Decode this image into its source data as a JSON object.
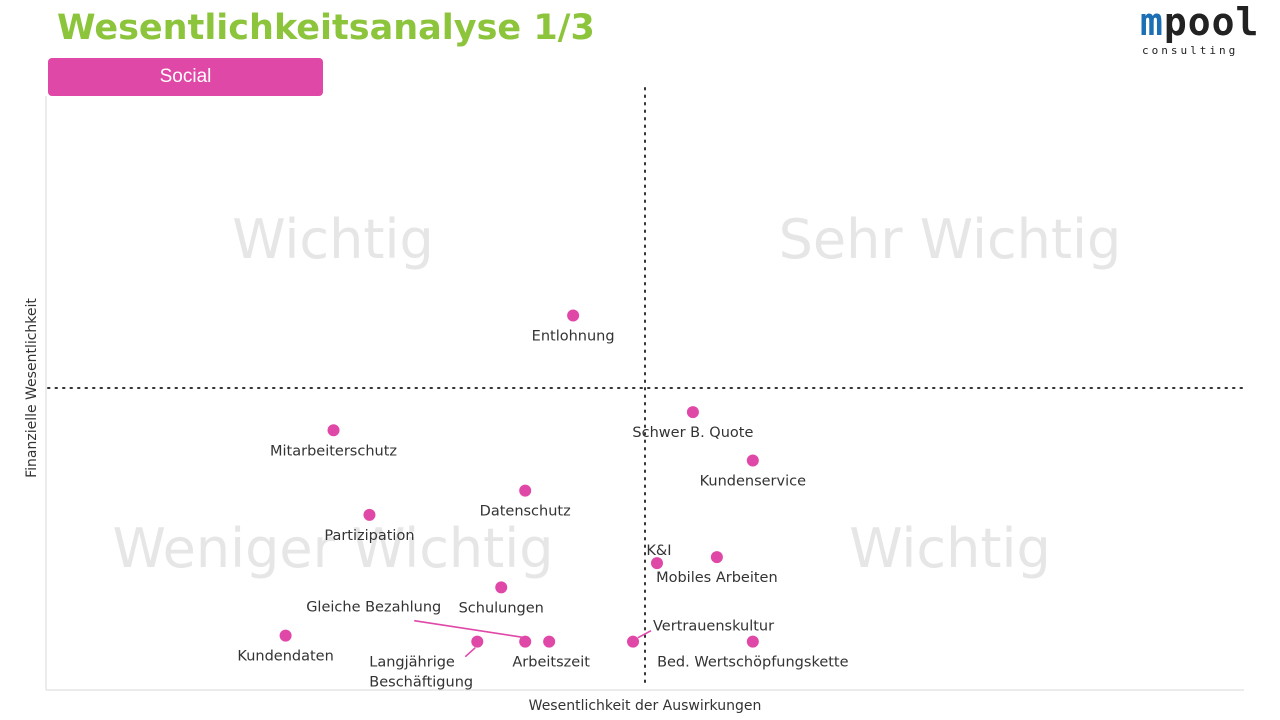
{
  "title": "Wesentlichkeitsanalyse 1/3",
  "category": "Social",
  "logo": {
    "main_first": "m",
    "main_rest": "pool",
    "sub": "consulting"
  },
  "colors": {
    "title": "#8cc43c",
    "accent": "#e048a8",
    "m_letter": "#1c6fb5"
  },
  "chart_data": {
    "type": "scatter",
    "title": "",
    "xlabel": "Wesentlichkeit der Auswirkungen",
    "ylabel": "Finanzielle Wesentlichkeit",
    "xlim": [
      0,
      100
    ],
    "ylim": [
      0,
      100
    ],
    "threshold": {
      "x": 50,
      "y": 50
    },
    "quadrant_labels": {
      "top_left": "Wichtig",
      "top_right": "Sehr Wichtig",
      "bottom_left": "Weniger Wichtig",
      "bottom_right": "Wichtig"
    },
    "points": [
      {
        "label": "Entlohnung",
        "x": 44,
        "y": 62
      },
      {
        "label": "Mitarbeiterschutz",
        "x": 24,
        "y": 43
      },
      {
        "label": "Schwer B. Quote",
        "x": 54,
        "y": 46
      },
      {
        "label": "Kundenservice",
        "x": 59,
        "y": 38
      },
      {
        "label": "Datenschutz",
        "x": 40,
        "y": 33
      },
      {
        "label": "Partizipation",
        "x": 27,
        "y": 29
      },
      {
        "label": "K&I",
        "x": 51,
        "y": 21
      },
      {
        "label": "Mobiles Arbeiten",
        "x": 56,
        "y": 22
      },
      {
        "label": "Schulungen",
        "x": 38,
        "y": 17
      },
      {
        "label": "Kundendaten",
        "x": 20,
        "y": 9
      },
      {
        "label": "Gleiche Bezahlung",
        "x": 40,
        "y": 8
      },
      {
        "label": "Langjährige Beschäftigung",
        "x": 36,
        "y": 8
      },
      {
        "label": "Arbeitszeit",
        "x": 42,
        "y": 8
      },
      {
        "label": "Vertrauenskultur",
        "x": 49,
        "y": 8
      },
      {
        "label": "Bed. Wertschöpfungskette",
        "x": 59,
        "y": 8
      }
    ]
  }
}
